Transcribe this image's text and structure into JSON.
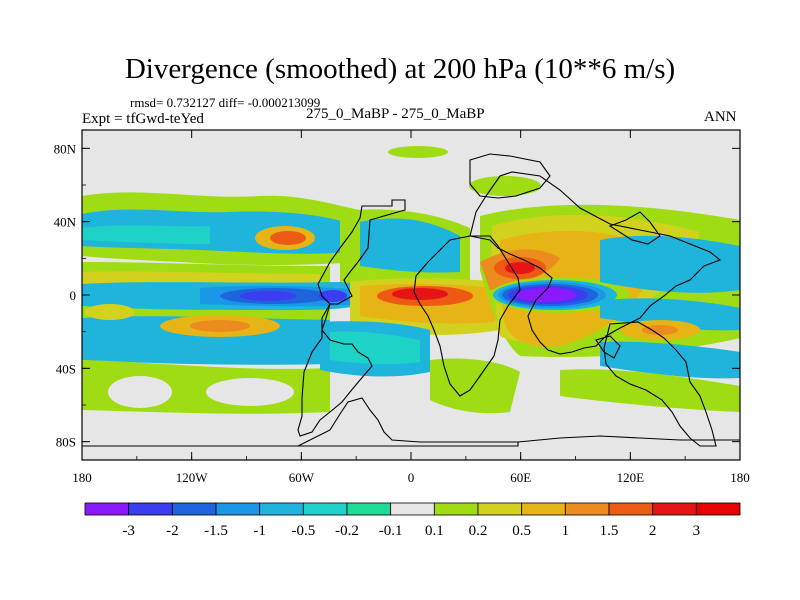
{
  "header": {
    "title": "Divergence (smoothed) at 200 hPa (10**6 m/s)",
    "stats": "rmsd= 0.732127 diff= -0.000213099",
    "experiment": "Expt = tfGwd-teYed",
    "comparison": "275_0_MaBP - 275_0_MaBP",
    "season": "ANN"
  },
  "chart_data": {
    "type": "heatmap",
    "title": "Divergence (smoothed) at 200 hPa (10**6 m/s)",
    "projection": "cylindrical-equidistant",
    "xlim": [
      -180,
      180
    ],
    "ylim": [
      -90,
      90
    ],
    "x_ticks": [
      {
        "value": -180,
        "label": "180"
      },
      {
        "value": -120,
        "label": "120W"
      },
      {
        "value": -60,
        "label": "60W"
      },
      {
        "value": 0,
        "label": "0"
      },
      {
        "value": 60,
        "label": "60E"
      },
      {
        "value": 120,
        "label": "120E"
      },
      {
        "value": 180,
        "label": "180"
      }
    ],
    "y_ticks": [
      {
        "value": 80,
        "label": "80N"
      },
      {
        "value": 40,
        "label": "40N"
      },
      {
        "value": 0,
        "label": "0"
      },
      {
        "value": -40,
        "label": "40S"
      },
      {
        "value": -80,
        "label": "80S"
      }
    ],
    "colorbar": {
      "labels": [
        "-3",
        "-2",
        "-1.5",
        "-1",
        "-0.5",
        "-0.2",
        "-0.1",
        "0.1",
        "0.2",
        "0.5",
        "1",
        "1.5",
        "2",
        "3"
      ],
      "colors": [
        "#8c1aff",
        "#3c3cf0",
        "#1e64dc",
        "#1996e6",
        "#1eb4dc",
        "#1ed2c8",
        "#1edc96",
        "#e6e6e6",
        "#a0dc14",
        "#d2d21e",
        "#e6b414",
        "#ec8c1e",
        "#ec5a14",
        "#e61414",
        "#e60000"
      ]
    },
    "features": [
      {
        "name": "equatorial-convergence-indian",
        "lon": 70,
        "lat": 0,
        "value": -3
      },
      {
        "name": "equatorial-convergence-atlantic",
        "lon": -75,
        "lat": 0,
        "value": -2
      },
      {
        "name": "equatorial-divergence-africa",
        "lon": 10,
        "lat": 0,
        "value": 3
      },
      {
        "name": "divergence-arabia",
        "lon": 50,
        "lat": 15,
        "value": 3
      }
    ]
  }
}
